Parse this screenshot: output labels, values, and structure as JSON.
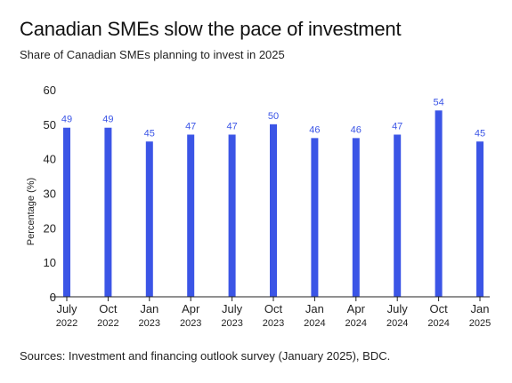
{
  "title": "Canadian SMEs slow the pace of investment",
  "subtitle": "Share of Canadian SMEs planning to invest in 2025",
  "source": "Sources: Investment and financing outlook survey (January 2025), BDC.",
  "colors": {
    "bar": "#3b55e6",
    "label": "#3b55e6",
    "axis": "#222222"
  },
  "chart_data": {
    "type": "bar",
    "categories": [
      [
        "July",
        "2022"
      ],
      [
        "Oct",
        "2022"
      ],
      [
        "Jan",
        "2023"
      ],
      [
        "Apr",
        "2023"
      ],
      [
        "July",
        "2023"
      ],
      [
        "Oct",
        "2023"
      ],
      [
        "Jan",
        "2024"
      ],
      [
        "Apr",
        "2024"
      ],
      [
        "July",
        "2024"
      ],
      [
        "Oct",
        "2024"
      ],
      [
        "Jan",
        "2025"
      ]
    ],
    "values": [
      49,
      49,
      45,
      47,
      47,
      50,
      46,
      46,
      47,
      54,
      45
    ],
    "ylabel": "Percentage (%)",
    "xlabel": "",
    "ylim": [
      0,
      60
    ],
    "yticks": [
      0,
      10,
      20,
      30,
      40,
      50,
      60
    ],
    "grid": false,
    "data_labels": true
  }
}
